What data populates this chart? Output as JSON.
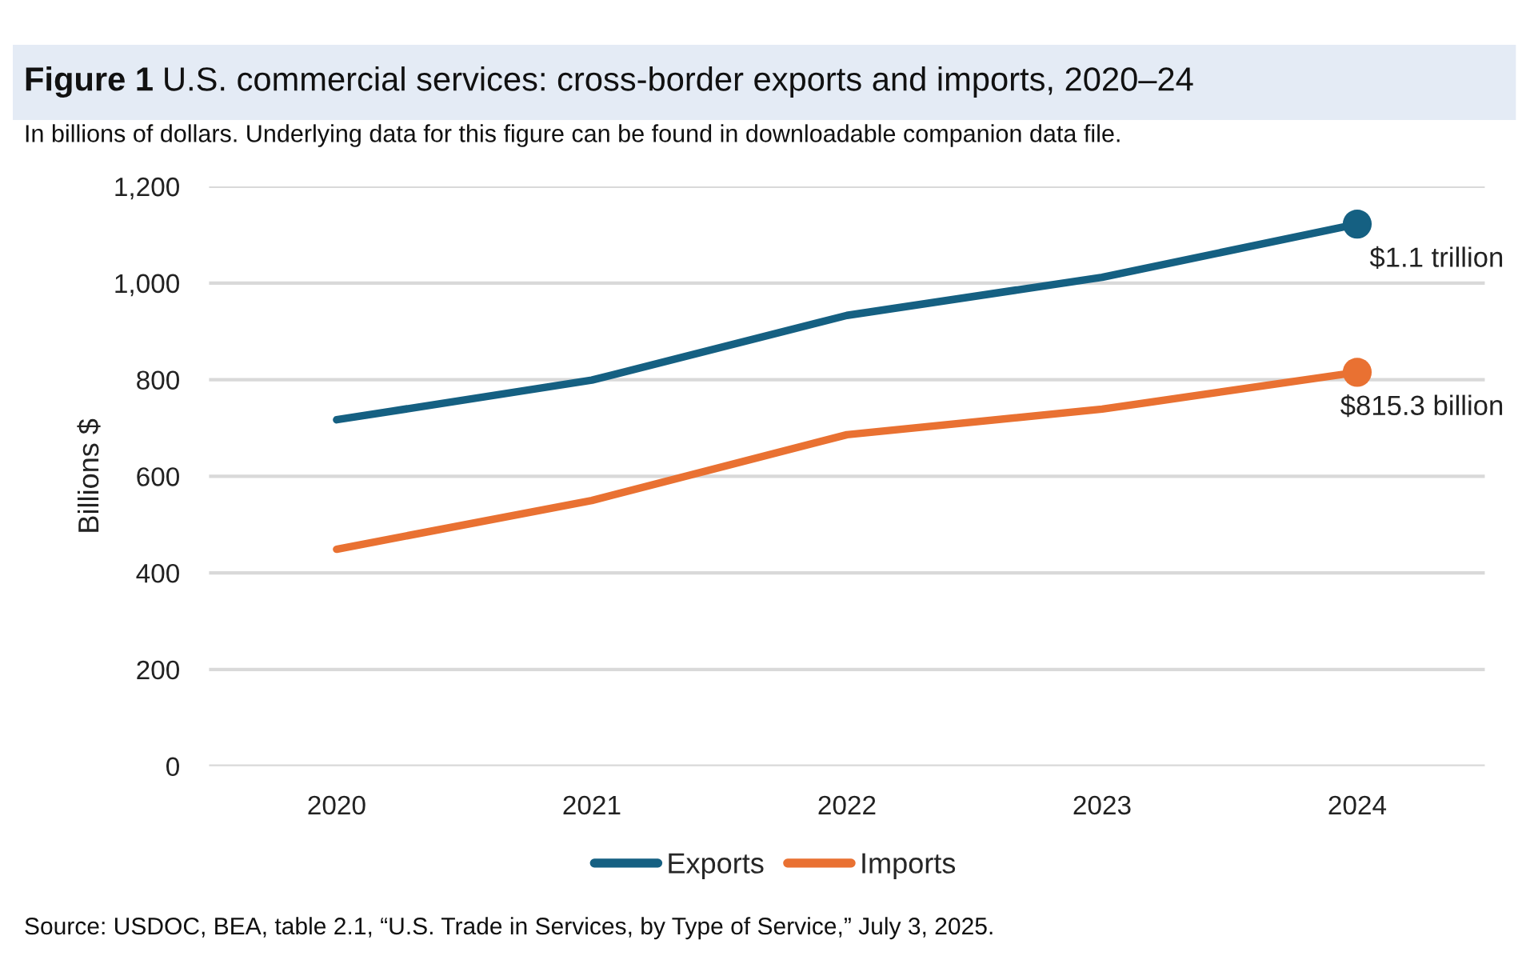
{
  "chart_data": {
    "type": "line",
    "title": "Figure 1 U.S. commercial services: cross-border exports and imports, 2020–24",
    "subtitle": "In billions of dollars. Underlying data for this figure can be found in downloadable companion data file.",
    "ylabel": "Billions $",
    "categories": [
      "2020",
      "2021",
      "2022",
      "2023",
      "2024"
    ],
    "series": [
      {
        "name": "Exports",
        "color": "#156082",
        "values": [
          717,
          799,
          933,
          1012,
          1122
        ]
      },
      {
        "name": "Imports",
        "color": "#e97132",
        "values": [
          449,
          550,
          686,
          739,
          815.3
        ]
      },
      {
        "type": "scatter",
        "marker": "circle",
        "color": "#156082",
        "values": [
          null,
          null,
          null,
          null,
          1122
        ]
      },
      {
        "type": "scatter",
        "marker": "circle",
        "color": "#e97132",
        "values": [
          null,
          null,
          null,
          null,
          815.3
        ]
      }
    ],
    "ylim": [
      0,
      1200
    ],
    "yticks": [
      0,
      200,
      400,
      600,
      800,
      {
        "value": 1000,
        "label": "1,000"
      },
      {
        "value": 1200,
        "label": "1,200"
      }
    ],
    "grid": "y",
    "legend": "bottom",
    "marker": "none",
    "line_style": "solid",
    "annotations": [
      {
        "text": "$1.1 trillion",
        "x": "2024",
        "y": 1122
      },
      {
        "text": "$815.3 billion",
        "x": "2024",
        "y": 815.3
      },
      "Source: USDOC, BEA, table 2.1, “U.S. Trade in Services, by Type of Service,” July 3, 2025."
    ]
  }
}
